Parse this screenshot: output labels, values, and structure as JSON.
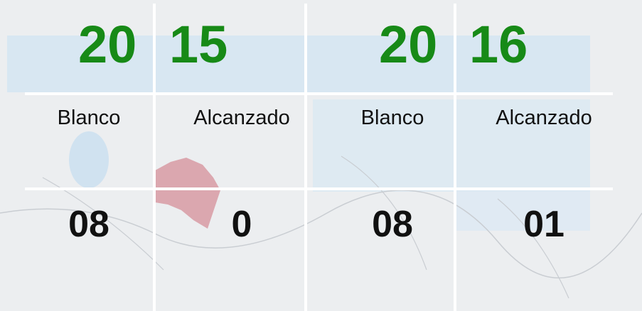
{
  "header": {
    "year_parts": [
      "20",
      "15",
      "20",
      "16"
    ]
  },
  "table": {
    "rows": [
      [
        "Blanco",
        "Alcanzado",
        "Blanco",
        "Alcanzado"
      ],
      [
        "08",
        "0",
        "08",
        "01"
      ]
    ]
  }
}
